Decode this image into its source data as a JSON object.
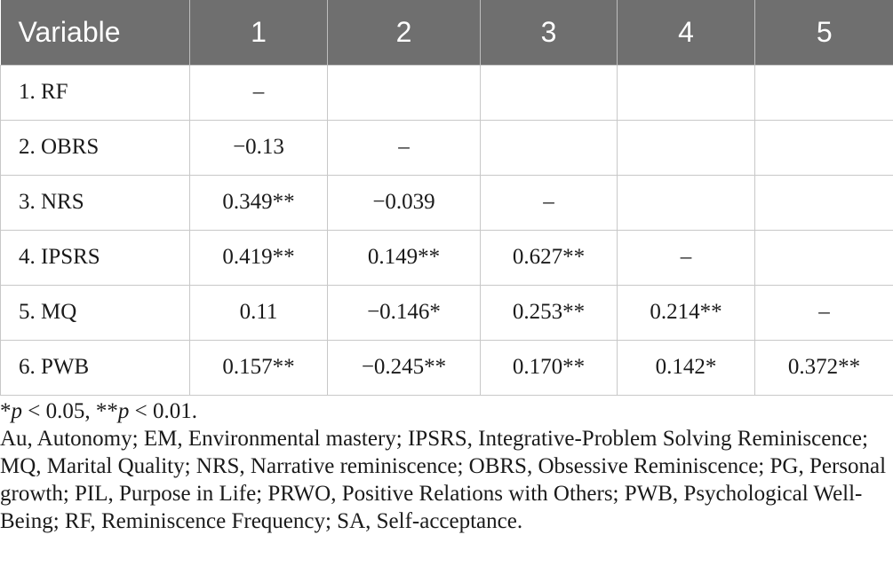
{
  "table": {
    "headers": [
      "Variable",
      "1",
      "2",
      "3",
      "4",
      "5"
    ],
    "rows": [
      [
        "1. RF",
        "–",
        "",
        "",
        "",
        ""
      ],
      [
        "2. OBRS",
        "−0.13",
        "–",
        "",
        "",
        ""
      ],
      [
        "3. NRS",
        "0.349**",
        "−0.039",
        "–",
        "",
        ""
      ],
      [
        "4. IPSRS",
        "0.419**",
        "0.149**",
        "0.627**",
        "–",
        ""
      ],
      [
        "5. MQ",
        "0.11",
        "−0.146*",
        "0.253**",
        "0.214**",
        "–"
      ],
      [
        "6. PWB",
        "0.157**",
        "−0.245**",
        "0.170**",
        "0.142*",
        "0.372**"
      ]
    ]
  },
  "notes": {
    "significance": {
      "star1": "*",
      "p": "p",
      "part1": " < 0.05, ",
      "star2": "**",
      "part2": " < 0.01."
    },
    "abbreviations": "Au, Autonomy; EM, Environmental mastery; IPSRS, Integrative-Problem Solving Reminiscence; MQ, Marital Quality; NRS, Narrative reminiscence; OBRS, Obsessive Reminiscence; PG, Personal growth; PIL, Purpose in Life; PRWO, Positive Relations with Others; PWB, Psychological Well-Being; RF, Reminiscence Frequency; SA, Self-acceptance."
  }
}
